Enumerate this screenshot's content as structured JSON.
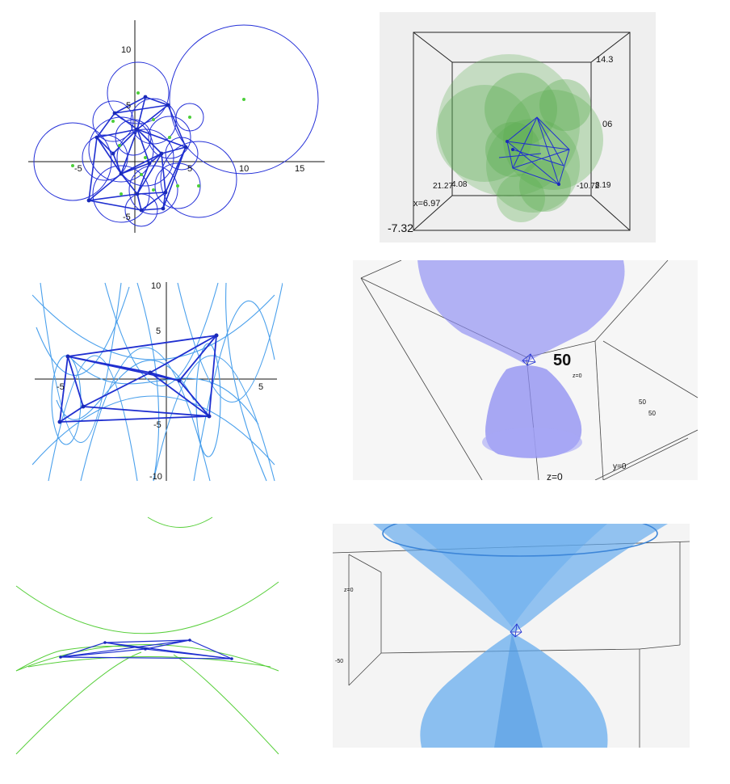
{
  "colors": {
    "delaunay_edge": "#1f2fd0",
    "vertex": "#1a2ab8",
    "center_dot": "#4ccf3a",
    "ellipse_curve": "#4aa0ec",
    "hyperbola_curve": "#57cf3a",
    "sphere_fill": "#5aad4e",
    "cone_violet": "#8c8cf2",
    "cone_blue": "#5ea8ee"
  },
  "panel1": {
    "ticks_x": [
      "-5",
      "5",
      "10",
      "15"
    ],
    "ticks_y": [
      "10",
      "5",
      "-5"
    ]
  },
  "panel2": {
    "labels": [
      "14.3",
      "06",
      "21.27",
      "4.08",
      "-10.72",
      "8.19",
      "x=6.97",
      "-7.32"
    ]
  },
  "panel3": {
    "ticks_x": [
      "-5",
      "5"
    ],
    "ticks_y": [
      "10",
      "5",
      "-5",
      "-10"
    ]
  },
  "panel4": {
    "labels": [
      "50",
      "z=0",
      "50",
      "50",
      "y=0",
      "z=0"
    ]
  },
  "panel6": {
    "labels": [
      "z=0",
      "-50"
    ]
  }
}
